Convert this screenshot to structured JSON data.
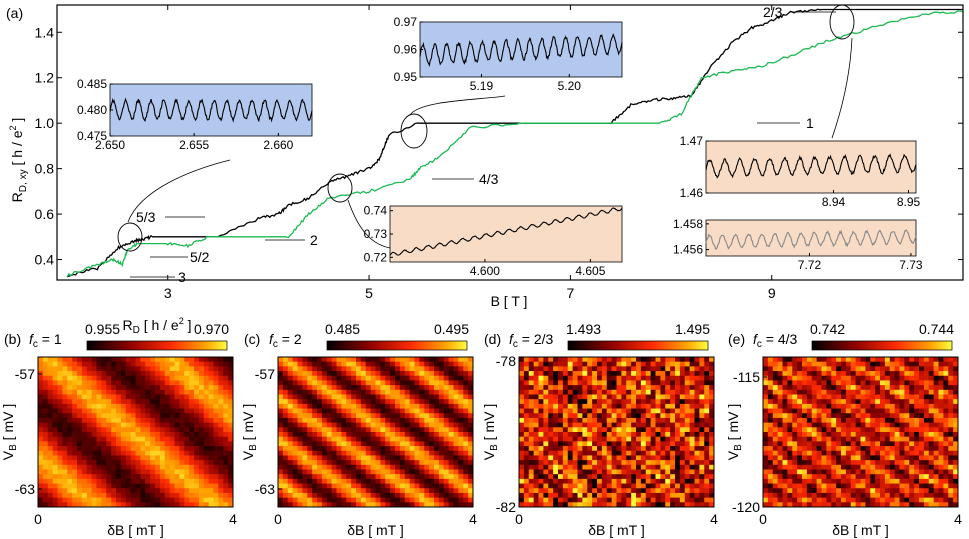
{
  "chart_data": [
    {
      "panel": "(a)",
      "type": "line",
      "xlabel": "B [ T ]",
      "ylabel_main": "R",
      "ylabel_sub": "D, xy",
      "ylabel_unit_pre": " [ h / e",
      "ylabel_unit_sup": "2",
      "ylabel_unit_post": " ]",
      "xlim": [
        1.9,
        10.9
      ],
      "ylim": [
        0.31,
        1.52
      ],
      "xticks": [
        "3",
        "5",
        "7",
        "9"
      ],
      "yticks": [
        "0.4",
        "0.6",
        "0.8",
        "1.0",
        "1.2",
        "1.4"
      ],
      "series": [
        {
          "color": "#000000",
          "x": [
            2.0,
            2.3,
            2.5,
            2.65,
            2.75,
            2.85,
            3.0,
            3.5,
            3.9,
            4.1,
            4.2,
            4.4,
            4.6,
            4.8,
            5.0,
            5.1,
            5.2,
            5.5,
            6.0,
            6.5,
            7.0,
            7.4,
            7.6,
            7.8,
            8.0,
            8.2,
            8.4,
            8.6,
            8.8,
            9.0,
            9.2,
            9.5,
            10.0,
            10.5,
            10.9
          ],
          "y": [
            0.33,
            0.36,
            0.45,
            0.48,
            0.49,
            0.5,
            0.5,
            0.5,
            0.58,
            0.6,
            0.64,
            0.67,
            0.74,
            0.77,
            0.8,
            0.84,
            0.95,
            1.0,
            1.0,
            1.0,
            1.0,
            1.0,
            1.08,
            1.1,
            1.11,
            1.12,
            1.25,
            1.35,
            1.42,
            1.45,
            1.49,
            1.5,
            1.5,
            1.5,
            1.5
          ]
        },
        {
          "color": "#1db954",
          "x": [
            2.0,
            2.25,
            2.45,
            2.55,
            2.6,
            2.7,
            2.8,
            3.0,
            3.2,
            3.4,
            3.6,
            3.8,
            4.2,
            4.4,
            4.6,
            5.0,
            5.4,
            5.5,
            5.7,
            6.0,
            6.5,
            7.0,
            7.5,
            7.7,
            7.9,
            8.1,
            8.3,
            8.6,
            8.9,
            9.2,
            9.6,
            10.0,
            10.5,
            10.9
          ],
          "y": [
            0.33,
            0.37,
            0.4,
            0.38,
            0.44,
            0.47,
            0.47,
            0.47,
            0.46,
            0.5,
            0.5,
            0.5,
            0.5,
            0.6,
            0.67,
            0.7,
            0.75,
            0.8,
            0.85,
            0.98,
            1.0,
            1.0,
            1.0,
            1.0,
            1.0,
            1.04,
            1.2,
            1.23,
            1.25,
            1.3,
            1.37,
            1.42,
            1.48,
            1.49
          ]
        }
      ],
      "annotations": [
        "5/3",
        "5/2",
        "3",
        "2",
        "4/3",
        "1",
        "2/3"
      ]
    },
    {
      "panel": "inset (a) 1",
      "type": "line",
      "background": "#b3c8ee",
      "xlim": [
        2.65,
        2.662
      ],
      "ylim": [
        0.475,
        0.485
      ],
      "xticks": [
        "2.650",
        "2.655",
        "2.660"
      ],
      "yticks": [
        "0.485",
        "0.480",
        "0.475"
      ],
      "oscillations": 16,
      "mean": 0.48,
      "amplitude": 0.0018,
      "trend": 0,
      "color": "#000000"
    },
    {
      "panel": "inset (a) 2",
      "type": "line",
      "background": "#b3c8ee",
      "xlim": [
        5.183,
        5.206
      ],
      "ylim": [
        0.95,
        0.97
      ],
      "xticks": [
        "5.19",
        "5.20"
      ],
      "yticks": [
        "0.97",
        "0.96",
        "0.95"
      ],
      "oscillations": 17,
      "mean": 0.96,
      "amplitude": 0.0035,
      "trend": 0.004,
      "color": "#000000"
    },
    {
      "panel": "inset (a) 3",
      "type": "line",
      "background": "#f8dcc6",
      "xlim": [
        4.5955,
        4.6065
      ],
      "ylim": [
        0.718,
        0.742
      ],
      "xticks": [
        "4.600",
        "4.605"
      ],
      "yticks": [
        "0.74",
        "0.73",
        "0.72"
      ],
      "oscillations": 20,
      "mean": 0.731,
      "amplitude": 0.0008,
      "trend": 0.02,
      "color": "#000000"
    },
    {
      "panel": "inset (a) 4",
      "type": "line",
      "background": "#f8dcc6",
      "xlim": [
        8.923,
        8.951
      ],
      "ylim": [
        1.46,
        1.47
      ],
      "xticks": [
        "8.94",
        "8.95"
      ],
      "yticks": [
        "1.47",
        "1.46"
      ],
      "oscillations": 14,
      "mean": 1.4652,
      "amplitude": 0.0016,
      "trend": 0.001,
      "color": "#000000"
    },
    {
      "panel": "inset (a) 5",
      "type": "line",
      "background": "#f8dcc6",
      "xlim": [
        7.7098,
        7.7305
      ],
      "ylim": [
        1.4555,
        1.4583
      ],
      "xticks": [
        "7.72",
        "7.73"
      ],
      "yticks": [
        "1.458",
        "1.456"
      ],
      "oscillations": 16,
      "mean": 1.4568,
      "amplitude": 0.0005,
      "trend": 0.0004,
      "color": "#888888"
    },
    {
      "panel": "(b)",
      "type": "heatmap",
      "fc": "1",
      "colorbar_title": "R",
      "colorbar_sub": "D",
      "colorbar_unit_pre": " [ h / e",
      "colorbar_unit_sup": "2",
      "colorbar_unit_post": " ]",
      "clim": [
        0.955,
        0.97
      ],
      "colorbar_ticks": [
        "0.955",
        "0.970"
      ],
      "xlabel": "δB [ mT ]",
      "xticks": [
        "0",
        "4"
      ],
      "ylabel": "V",
      "ylabel_sub": "B",
      "ylabel_unit": " [ mV ]",
      "yticks": [
        "-57",
        "-63"
      ],
      "stripes": 3.2,
      "tilt": 0.9,
      "noise": 0.12
    },
    {
      "panel": "(c)",
      "type": "heatmap",
      "fc": "2",
      "clim": [
        0.485,
        0.495
      ],
      "colorbar_ticks": [
        "0.485",
        "0.495"
      ],
      "xlabel": "δB [ mT ]",
      "xticks": [
        "0",
        "4"
      ],
      "ylabel": "V",
      "ylabel_sub": "B",
      "ylabel_unit": " [ mV ]",
      "yticks": [
        "-57",
        "-63"
      ],
      "stripes": 6.5,
      "tilt": 1.1,
      "noise": 0.12
    },
    {
      "panel": "(d)",
      "type": "heatmap",
      "fc": "2/3",
      "clim": [
        1.493,
        1.495
      ],
      "colorbar_ticks": [
        "1.493",
        "1.495"
      ],
      "xlabel": "δB [ mT ]",
      "xticks": [
        "0",
        "4"
      ],
      "ylabel": "V",
      "ylabel_sub": "B",
      "ylabel_unit": " [ mV ]",
      "yticks": [
        "-78",
        "-82"
      ],
      "stripes": 8,
      "tilt": 0.6,
      "noise": 0.75
    },
    {
      "panel": "(e)",
      "type": "heatmap",
      "fc": "4/3",
      "clim": [
        0.742,
        0.744
      ],
      "colorbar_ticks": [
        "0.742",
        "0.744"
      ],
      "xlabel": "δB [ mT ]",
      "xticks": [
        "0",
        "4"
      ],
      "ylabel": "V",
      "ylabel_sub": "B",
      "ylabel_unit": " [ mV ]",
      "yticks": [
        "-115",
        "-120"
      ],
      "stripes": 10,
      "tilt": 1.3,
      "noise": 0.45
    }
  ]
}
